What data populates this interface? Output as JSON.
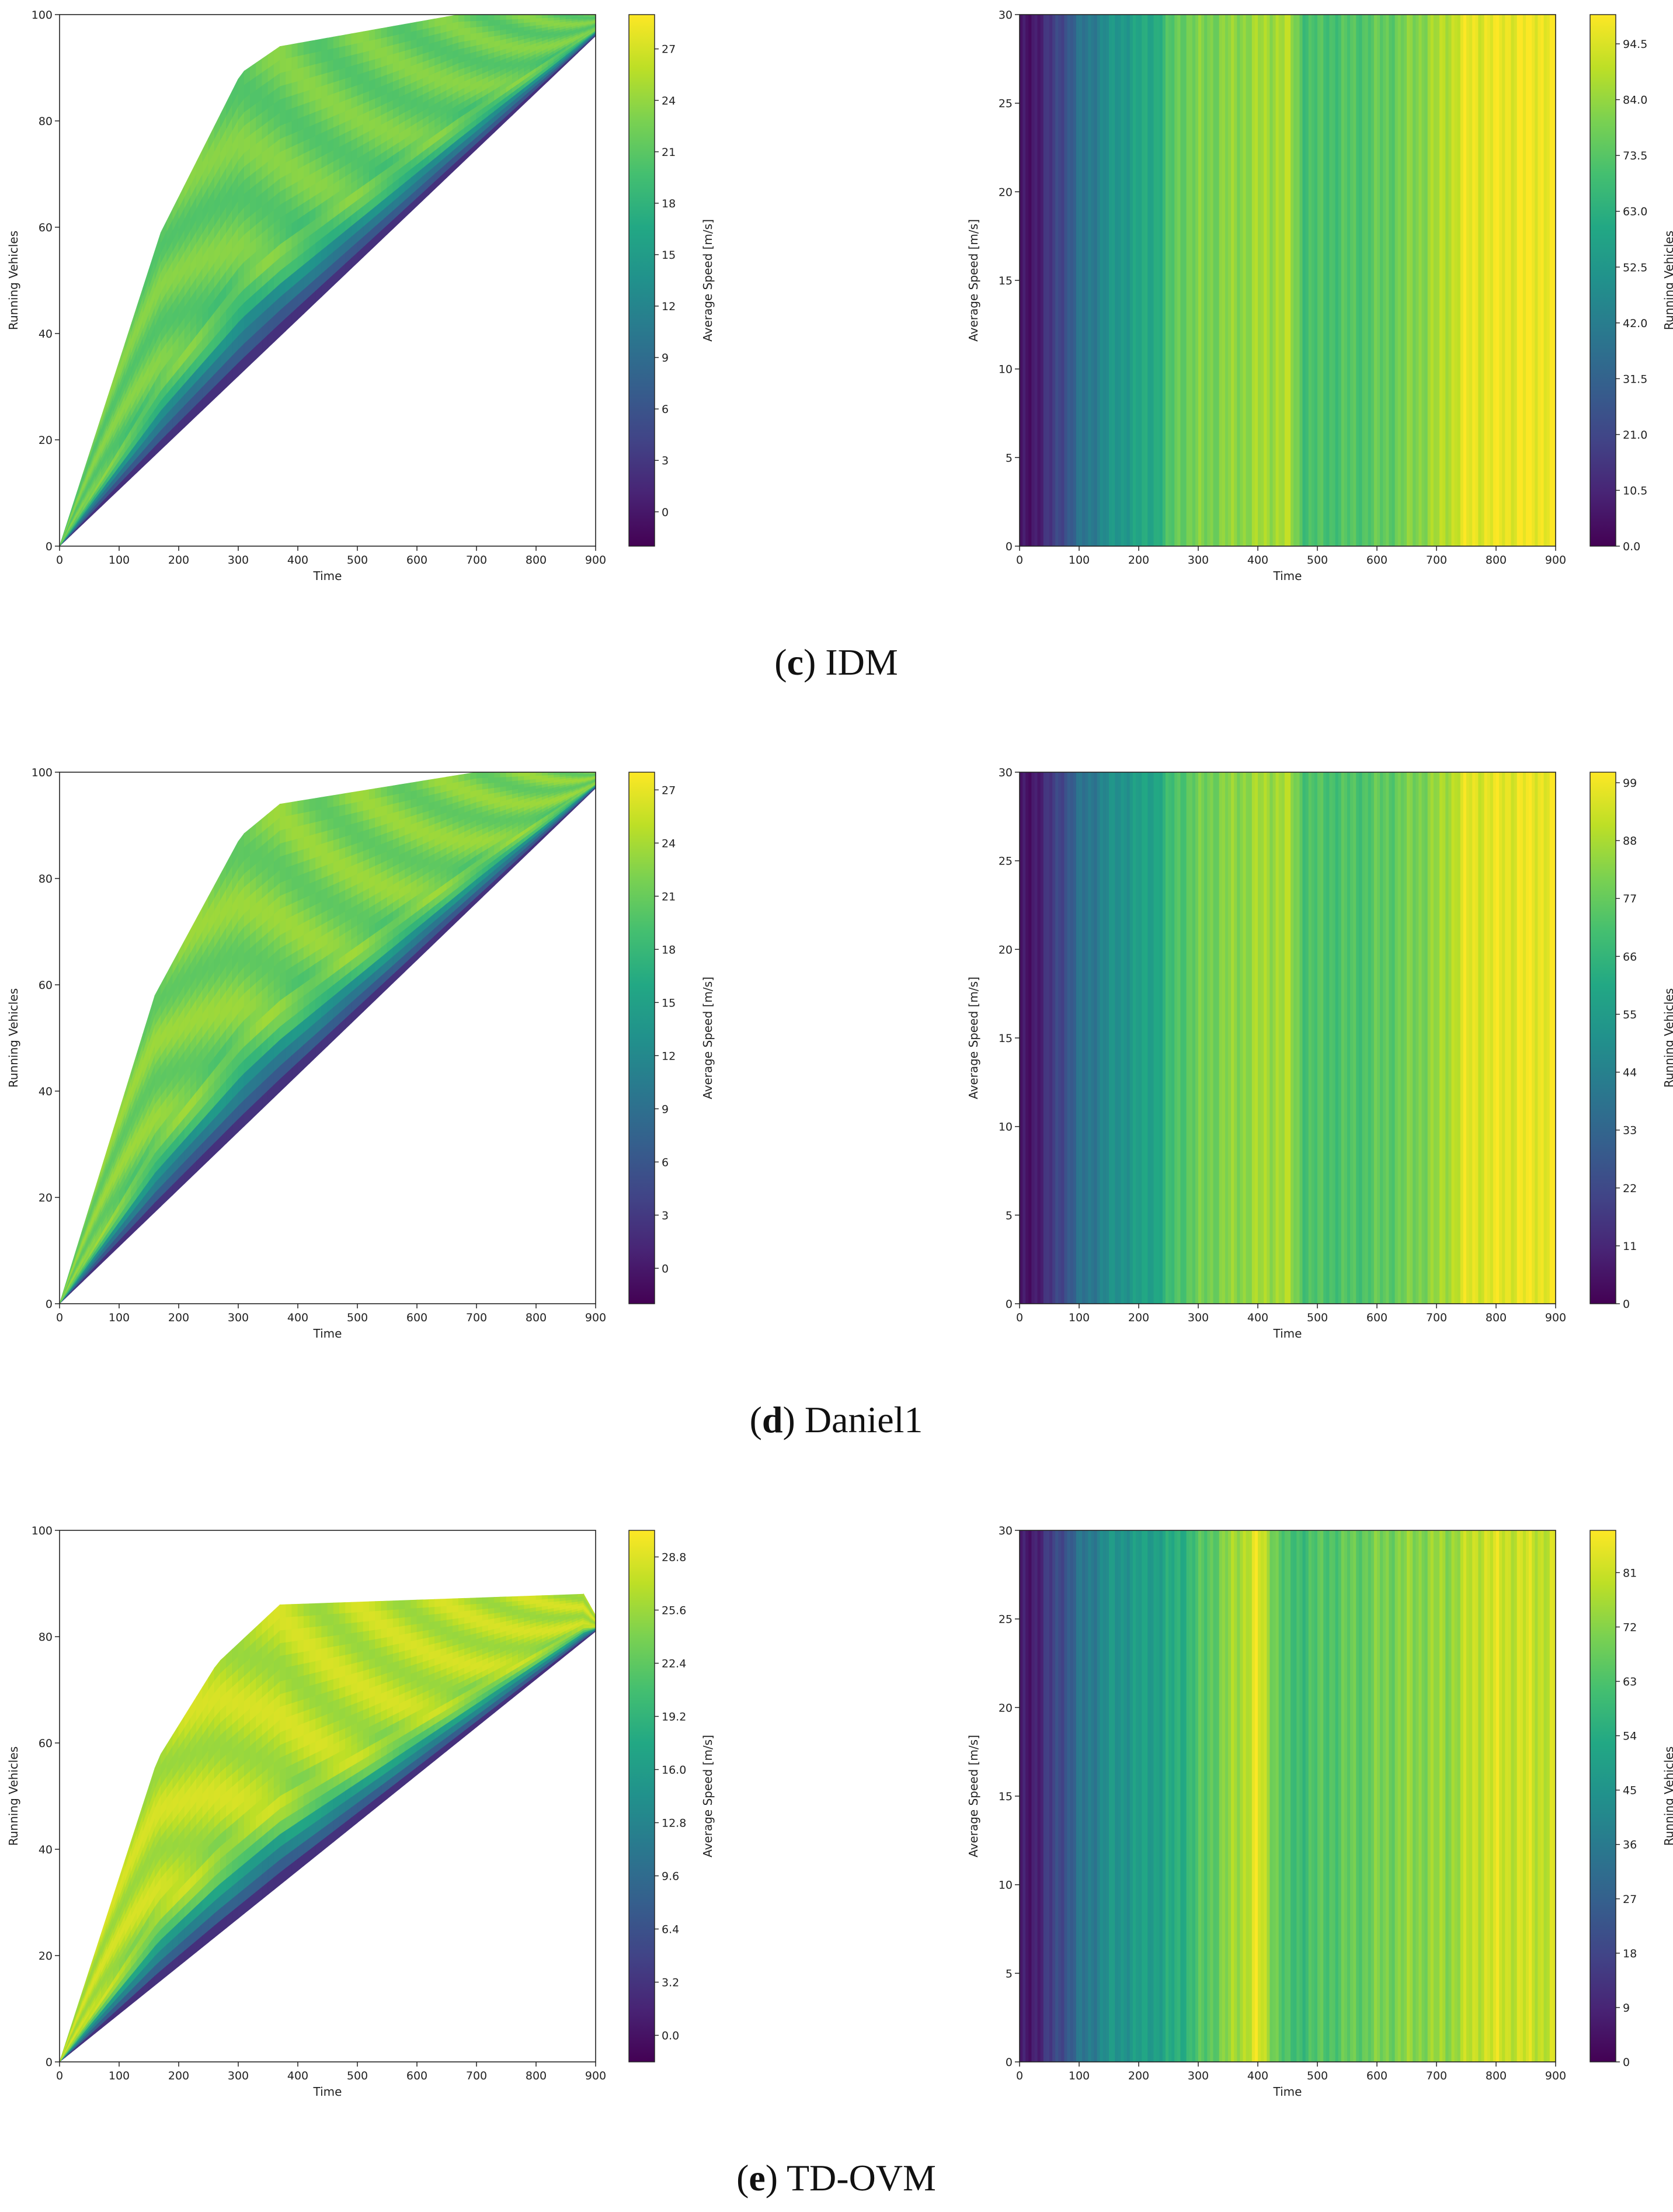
{
  "figure": {
    "captions": [
      {
        "letter": "c",
        "open": "(",
        "close": ")",
        "name": " IDM"
      },
      {
        "letter": "d",
        "open": "(",
        "close": ")",
        "name": " Daniel1"
      },
      {
        "letter": "e",
        "open": "(",
        "close": ")",
        "name": " TD-OVM"
      }
    ]
  },
  "chart_data": [
    {
      "id": "c-left",
      "type": "tricontour",
      "model": "IDM",
      "xlabel": "Time",
      "ylabel": "Running Vehicles",
      "colorbar_label": "Average Speed [m/s]",
      "xlim": [
        0,
        900
      ],
      "ylim": [
        0,
        100
      ],
      "xticks": [
        "0",
        "100",
        "200",
        "300",
        "400",
        "500",
        "600",
        "700",
        "800",
        "900"
      ],
      "yticks": [
        "0",
        "20",
        "40",
        "60",
        "80",
        "100"
      ],
      "colorbar_ticks": [
        "0",
        "3",
        "6",
        "9",
        "12",
        "15",
        "18",
        "21",
        "24",
        "27"
      ],
      "colorbar_range": [
        -2,
        29
      ],
      "upper_boundary": [
        [
          0,
          0
        ],
        [
          170,
          59
        ],
        [
          305,
          89
        ],
        [
          370,
          94
        ],
        [
          670,
          100
        ],
        [
          900,
          100
        ]
      ],
      "lower_boundary": [
        [
          0,
          0
        ],
        [
          900,
          96
        ]
      ],
      "dominant_speed": 22
    },
    {
      "id": "c-right",
      "type": "heatmap",
      "model": "IDM",
      "xlabel": "Time",
      "ylabel": "Average Speed [m/s]",
      "colorbar_label": "Running Vehicles",
      "xlim": [
        0,
        900
      ],
      "ylim": [
        0,
        30
      ],
      "xticks": [
        "0",
        "100",
        "200",
        "300",
        "400",
        "500",
        "600",
        "700",
        "800",
        "900"
      ],
      "yticks": [
        "0",
        "5",
        "10",
        "15",
        "20",
        "25",
        "30"
      ],
      "colorbar_ticks": [
        "0.0",
        "10.5",
        "21.0",
        "31.5",
        "42.0",
        "52.5",
        "63.0",
        "73.5",
        "84.0",
        "94.5"
      ],
      "colorbar_range": [
        0,
        100
      ],
      "time_profile": [
        [
          0,
          2
        ],
        [
          50,
          14
        ],
        [
          100,
          36
        ],
        [
          160,
          52
        ],
        [
          230,
          62
        ],
        [
          270,
          78
        ],
        [
          320,
          80
        ],
        [
          400,
          85
        ],
        [
          450,
          88
        ],
        [
          480,
          70
        ],
        [
          560,
          72
        ],
        [
          620,
          76
        ],
        [
          700,
          86
        ],
        [
          750,
          96
        ],
        [
          900,
          99
        ]
      ]
    },
    {
      "id": "d-left",
      "type": "tricontour",
      "model": "Daniel1",
      "xlabel": "Time",
      "ylabel": "Running Vehicles",
      "colorbar_label": "Average Speed [m/s]",
      "xlim": [
        0,
        900
      ],
      "ylim": [
        0,
        100
      ],
      "xticks": [
        "0",
        "100",
        "200",
        "300",
        "400",
        "500",
        "600",
        "700",
        "800",
        "900"
      ],
      "yticks": [
        "0",
        "20",
        "40",
        "60",
        "80",
        "100"
      ],
      "colorbar_ticks": [
        "0",
        "3",
        "6",
        "9",
        "12",
        "15",
        "18",
        "21",
        "24",
        "27"
      ],
      "colorbar_range": [
        -2,
        28
      ],
      "upper_boundary": [
        [
          0,
          0
        ],
        [
          160,
          58
        ],
        [
          305,
          88
        ],
        [
          370,
          94
        ],
        [
          700,
          100
        ],
        [
          900,
          100
        ]
      ],
      "lower_boundary": [
        [
          0,
          0
        ],
        [
          900,
          97
        ]
      ],
      "dominant_speed": 22
    },
    {
      "id": "d-right",
      "type": "heatmap",
      "model": "Daniel1",
      "xlabel": "Time",
      "ylabel": "Average Speed [m/s]",
      "colorbar_label": "Running Vehicles",
      "xlim": [
        0,
        900
      ],
      "ylim": [
        0,
        30
      ],
      "xticks": [
        "0",
        "100",
        "200",
        "300",
        "400",
        "500",
        "600",
        "700",
        "800",
        "900"
      ],
      "yticks": [
        "0",
        "5",
        "10",
        "15",
        "20",
        "25",
        "30"
      ],
      "colorbar_ticks": [
        "0",
        "11",
        "22",
        "33",
        "44",
        "55",
        "66",
        "77",
        "88",
        "99"
      ],
      "colorbar_range": [
        0,
        101
      ],
      "time_profile": [
        [
          0,
          2
        ],
        [
          50,
          14
        ],
        [
          100,
          36
        ],
        [
          160,
          50
        ],
        [
          230,
          60
        ],
        [
          270,
          74
        ],
        [
          320,
          80
        ],
        [
          400,
          86
        ],
        [
          450,
          88
        ],
        [
          480,
          72
        ],
        [
          560,
          72
        ],
        [
          620,
          76
        ],
        [
          700,
          84
        ],
        [
          750,
          96
        ],
        [
          900,
          99
        ]
      ]
    },
    {
      "id": "e-left",
      "type": "tricontour",
      "model": "TD-OVM",
      "xlabel": "Time",
      "ylabel": "Running Vehicles",
      "colorbar_label": "Average Speed [m/s]",
      "xlim": [
        0,
        900
      ],
      "ylim": [
        0,
        100
      ],
      "xticks": [
        "0",
        "100",
        "200",
        "300",
        "400",
        "500",
        "600",
        "700",
        "800",
        "900"
      ],
      "yticks": [
        "0",
        "20",
        "40",
        "60",
        "80",
        "100"
      ],
      "colorbar_ticks": [
        "0.0",
        "3.2",
        "6.4",
        "9.6",
        "12.8",
        "16.0",
        "19.2",
        "22.4",
        "25.6",
        "28.8"
      ],
      "colorbar_range": [
        -1.6,
        30.4
      ],
      "upper_boundary": [
        [
          0,
          0
        ],
        [
          165,
          57
        ],
        [
          265,
          75
        ],
        [
          370,
          86
        ],
        [
          880,
          88
        ],
        [
          900,
          84
        ]
      ],
      "lower_boundary": [
        [
          0,
          0
        ],
        [
          900,
          81
        ]
      ],
      "dominant_speed": 27
    },
    {
      "id": "e-right",
      "type": "heatmap",
      "model": "TD-OVM",
      "xlabel": "Time",
      "ylabel": "Average Speed [m/s]",
      "colorbar_label": "Running Vehicles",
      "xlim": [
        0,
        900
      ],
      "ylim": [
        0,
        30
      ],
      "xticks": [
        "0",
        "100",
        "200",
        "300",
        "400",
        "500",
        "600",
        "700",
        "800",
        "900"
      ],
      "yticks": [
        "0",
        "5",
        "10",
        "15",
        "20",
        "25",
        "30"
      ],
      "colorbar_ticks": [
        "0",
        "9",
        "18",
        "27",
        "36",
        "45",
        "54",
        "63",
        "72",
        "81"
      ],
      "colorbar_range": [
        0,
        88
      ],
      "time_profile": [
        [
          0,
          3
        ],
        [
          50,
          14
        ],
        [
          100,
          32
        ],
        [
          150,
          44
        ],
        [
          250,
          52
        ],
        [
          340,
          70
        ],
        [
          400,
          84
        ],
        [
          450,
          60
        ],
        [
          550,
          66
        ],
        [
          650,
          72
        ],
        [
          720,
          74
        ],
        [
          780,
          82
        ],
        [
          900,
          80
        ]
      ]
    }
  ]
}
